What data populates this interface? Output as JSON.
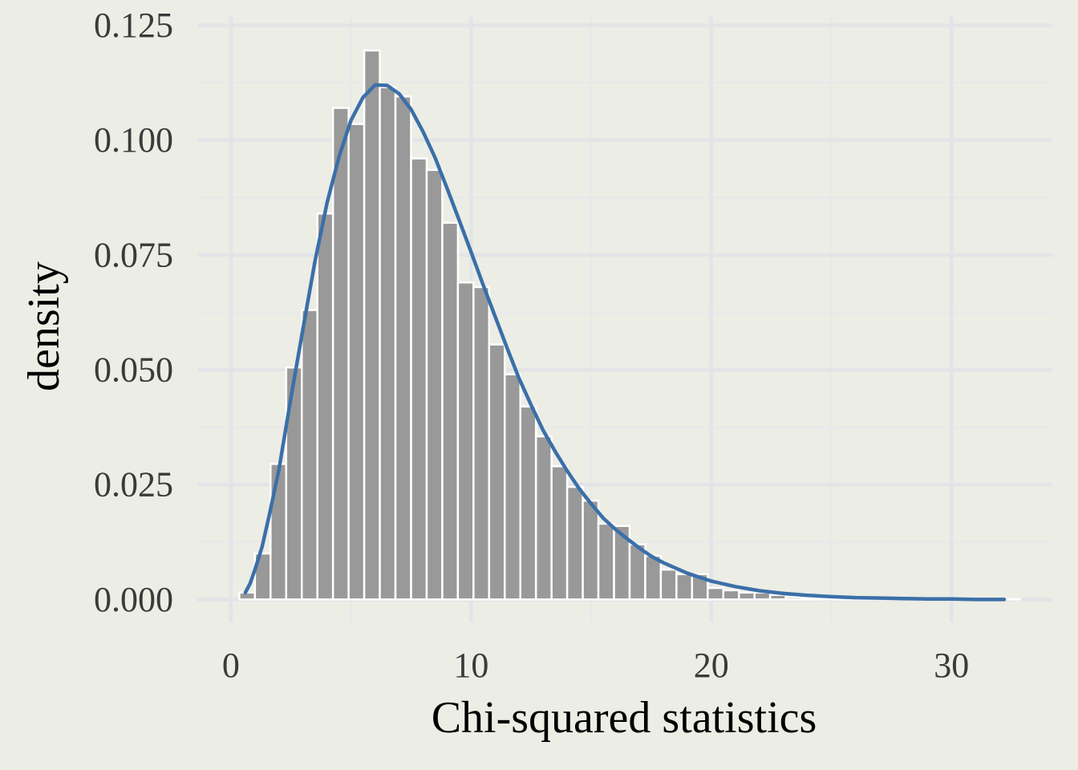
{
  "chart_data": {
    "type": "bar",
    "title": "",
    "xlabel": "Chi-squared statistics",
    "ylabel": "density",
    "xlim": [
      -1.4,
      34.2
    ],
    "ylim": [
      -0.005,
      0.127
    ],
    "x_ticks": [
      0,
      10,
      20,
      30
    ],
    "x_tick_labels": [
      "0",
      "10",
      "20",
      "30"
    ],
    "y_ticks": [
      0,
      0.025,
      0.05,
      0.075,
      0.1,
      0.125
    ],
    "y_tick_labels": [
      "0.000",
      "0.025",
      "0.050",
      "0.075",
      "0.100",
      "0.125"
    ],
    "grid": true,
    "legend": "none",
    "colors": {
      "bars": "#999999",
      "bar_outline": "#FFFFFF",
      "line": "#3B6FA8",
      "background": "#ECEDE5"
    },
    "histogram": {
      "bin_width": 0.65,
      "bin_starts": [
        0.35,
        1.0,
        1.65,
        2.3,
        2.95,
        3.6,
        4.25,
        4.9,
        5.55,
        6.2,
        6.85,
        7.5,
        8.15,
        8.8,
        9.45,
        10.1,
        10.75,
        11.4,
        12.05,
        12.7,
        13.35,
        14.0,
        14.65,
        15.3,
        15.95,
        16.6,
        17.25,
        17.9,
        18.55,
        19.2,
        19.85,
        20.5,
        21.15,
        21.8,
        22.45,
        23.1,
        23.75,
        24.4,
        25.05,
        25.7,
        26.35,
        27.0,
        27.65,
        28.3,
        28.95,
        29.6,
        30.25,
        30.9,
        31.55,
        32.2
      ],
      "densities": [
        0.0015,
        0.01,
        0.0295,
        0.0505,
        0.063,
        0.084,
        0.107,
        0.1035,
        0.1195,
        0.1115,
        0.1095,
        0.096,
        0.0935,
        0.082,
        0.069,
        0.068,
        0.0555,
        0.049,
        0.042,
        0.0355,
        0.029,
        0.0245,
        0.0215,
        0.0165,
        0.016,
        0.012,
        0.0095,
        0.0065,
        0.0055,
        0.0055,
        0.0025,
        0.002,
        0.0015,
        0.0015,
        0.001,
        0.0005,
        0.0003,
        0.0003,
        0.0002,
        0.0002,
        0.0001,
        0.0001,
        0.0001,
        0.0001,
        0.0001,
        0.0001,
        0.0001,
        0.0001,
        0.0001,
        0.0001
      ]
    },
    "series": [
      {
        "type": "line",
        "x": [
          0.6,
          0.8,
          1.0,
          1.3,
          1.6,
          2.0,
          2.5,
          3.0,
          3.5,
          4.0,
          4.5,
          5.0,
          5.5,
          6.0,
          6.5,
          7.0,
          7.5,
          8.0,
          8.5,
          9.0,
          9.5,
          10.0,
          10.5,
          11.0,
          11.5,
          12.0,
          12.5,
          13.0,
          13.5,
          14.0,
          14.5,
          15.0,
          15.5,
          16.0,
          16.5,
          17.0,
          17.5,
          18.0,
          19.0,
          20.0,
          21.0,
          22.0,
          23.0,
          24.0,
          25.0,
          26.0,
          27.0,
          28.0,
          29.0,
          30.0,
          31.0,
          32.2
        ],
        "y": [
          0.0015,
          0.0035,
          0.0065,
          0.0115,
          0.0184,
          0.0283,
          0.044,
          0.059,
          0.0736,
          0.0863,
          0.0964,
          0.1043,
          0.1093,
          0.112,
          0.1119,
          0.1101,
          0.1067,
          0.1018,
          0.0962,
          0.0895,
          0.0826,
          0.0756,
          0.0685,
          0.0616,
          0.0547,
          0.0481,
          0.0423,
          0.0368,
          0.0322,
          0.028,
          0.0241,
          0.0208,
          0.0177,
          0.0153,
          0.0132,
          0.0112,
          0.0094,
          0.008,
          0.0057,
          0.004,
          0.0028,
          0.0019,
          0.0013,
          0.0009,
          0.0006,
          0.0004,
          0.0003,
          0.0002,
          0.0001,
          0.0001,
          0.0,
          0.0
        ]
      }
    ]
  }
}
